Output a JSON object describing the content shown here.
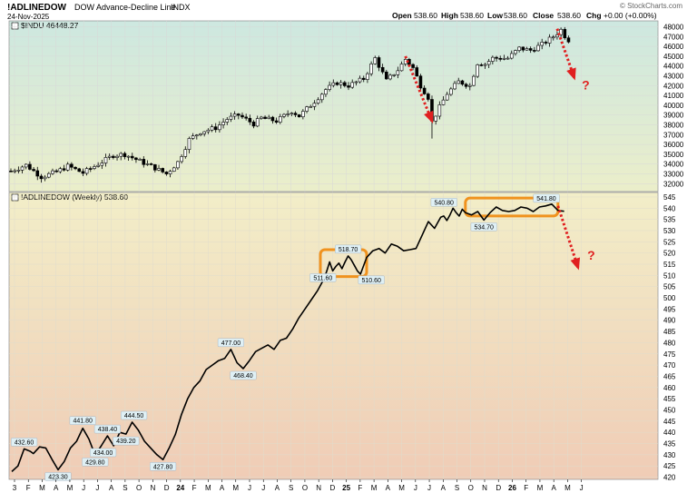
{
  "header": {
    "symbol": "!ADLINEDOW",
    "description": "DOW Advance-Decline Line",
    "exchange": "INDX",
    "date": "24-Nov-2025",
    "open_label": "Open",
    "open_value": "538.60",
    "high_label": "High",
    "high_value": "538.60",
    "low_label": "Low",
    "low_value": "538.60",
    "close_label": "Close",
    "close_value": "538.60",
    "chg_label": "Chg",
    "chg_value": "+0.00 (+0.00%)",
    "watermark": "© StockCharts.com"
  },
  "colors": {
    "candle": "#000000",
    "arrow": "#e02020",
    "box": "#f0921e",
    "line": "#000000"
  },
  "chart_data": [
    {
      "type": "candlestick",
      "label": "$INDU 46448.27",
      "yticks": [
        32000,
        33000,
        34000,
        35000,
        36000,
        37000,
        38000,
        39000,
        40000,
        41000,
        42000,
        43000,
        44000,
        45000,
        46000,
        47000,
        48000
      ],
      "ylim": [
        31200,
        48600
      ],
      "x_tick_labels": [
        "3",
        "F",
        "M",
        "A",
        "M",
        "J",
        "J",
        "A",
        "S",
        "O",
        "N",
        "D",
        "24",
        "F",
        "M",
        "A",
        "M",
        "J",
        "J",
        "A",
        "S",
        "O",
        "N",
        "D",
        "25",
        "F",
        "M",
        "A",
        "M",
        "J",
        "J",
        "A",
        "S",
        "O",
        "N",
        "D",
        "26",
        "F",
        "M",
        "A",
        "M",
        "J"
      ],
      "x_bold_ticks": [
        "24",
        "25",
        "26"
      ],
      "weekly_close_anchors": [
        [
          0,
          33300
        ],
        [
          4,
          33900
        ],
        [
          8,
          32700
        ],
        [
          12,
          33200
        ],
        [
          15,
          33800
        ],
        [
          19,
          33100
        ],
        [
          23,
          34000
        ],
        [
          27,
          34900
        ],
        [
          30,
          35000
        ],
        [
          34,
          34300
        ],
        [
          38,
          33600
        ],
        [
          41,
          33000
        ],
        [
          44,
          34200
        ],
        [
          47,
          36500
        ],
        [
          50,
          37300
        ],
        [
          54,
          37700
        ],
        [
          57,
          38600
        ],
        [
          60,
          39000
        ],
        [
          64,
          38100
        ],
        [
          66,
          38700
        ],
        [
          70,
          38400
        ],
        [
          74,
          39400
        ],
        [
          76,
          38900
        ],
        [
          79,
          40000
        ],
        [
          83,
          41600
        ],
        [
          86,
          42300
        ],
        [
          89,
          42000
        ],
        [
          93,
          42700
        ],
        [
          96,
          44800
        ],
        [
          99,
          42500
        ],
        [
          102,
          43600
        ],
        [
          104,
          44700
        ],
        [
          106,
          43800
        ],
        [
          108,
          42000
        ],
        [
          110,
          40800
        ],
        [
          111,
          38300
        ],
        [
          113,
          39800
        ],
        [
          115,
          41200
        ],
        [
          118,
          42400
        ],
        [
          121,
          42000
        ],
        [
          123,
          44300
        ],
        [
          125,
          44200
        ],
        [
          127,
          44800
        ],
        [
          131,
          44800
        ],
        [
          134,
          45800
        ],
        [
          137,
          45600
        ],
        [
          140,
          46200
        ],
        [
          143,
          47000
        ],
        [
          145,
          47700
        ],
        [
          147,
          46448
        ]
      ],
      "weeks_shown": 148
    },
    {
      "type": "line",
      "label": "!ADLINEDOW (Weekly) 538.60",
      "yticks": [
        420,
        425,
        430,
        435,
        440,
        445,
        450,
        455,
        460,
        465,
        470,
        475,
        480,
        485,
        490,
        495,
        500,
        505,
        510,
        515,
        520,
        525,
        530,
        535,
        540,
        545
      ],
      "ylim": [
        419,
        547
      ],
      "points": [
        [
          0,
          422.5
        ],
        [
          2,
          425
        ],
        [
          4,
          432.6
        ],
        [
          6,
          431.5
        ],
        [
          7,
          430.5
        ],
        [
          9,
          433.5
        ],
        [
          11,
          433
        ],
        [
          13,
          428
        ],
        [
          15,
          423.3
        ],
        [
          17,
          427
        ],
        [
          19,
          433
        ],
        [
          21,
          436
        ],
        [
          23,
          441.8
        ],
        [
          25,
          437
        ],
        [
          27,
          429.8
        ],
        [
          29,
          434
        ],
        [
          31,
          438.4
        ],
        [
          33,
          434
        ],
        [
          35,
          440
        ],
        [
          37,
          439.2
        ],
        [
          39,
          444.5
        ],
        [
          41,
          441
        ],
        [
          43,
          436
        ],
        [
          45,
          433
        ],
        [
          47,
          430
        ],
        [
          49,
          427.8
        ],
        [
          51,
          433
        ],
        [
          53,
          439
        ],
        [
          55,
          448
        ],
        [
          57,
          455
        ],
        [
          59,
          460
        ],
        [
          61,
          463
        ],
        [
          63,
          468
        ],
        [
          65,
          470
        ],
        [
          67,
          472
        ],
        [
          69,
          473
        ],
        [
          71,
          477
        ],
        [
          73,
          471
        ],
        [
          75,
          468.4
        ],
        [
          77,
          472
        ],
        [
          79,
          476
        ],
        [
          81,
          477.5
        ],
        [
          83,
          479
        ],
        [
          85,
          477
        ],
        [
          87,
          481
        ],
        [
          89,
          482
        ],
        [
          91,
          486
        ],
        [
          93,
          491
        ],
        [
          95,
          495
        ],
        [
          97,
          499
        ],
        [
          99,
          503
        ],
        [
          101,
          508
        ],
        [
          102,
          511.6
        ],
        [
          103,
          516
        ],
        [
          104,
          512
        ],
        [
          105,
          514
        ],
        [
          106,
          515.5
        ],
        [
          107,
          513
        ],
        [
          108,
          516
        ],
        [
          109,
          518.7
        ],
        [
          110,
          517
        ],
        [
          111,
          514.5
        ],
        [
          112,
          512
        ],
        [
          113,
          510.6
        ],
        [
          115,
          518
        ],
        [
          117,
          521
        ],
        [
          119,
          522
        ],
        [
          121,
          520
        ],
        [
          123,
          524
        ],
        [
          125,
          523
        ],
        [
          127,
          521
        ],
        [
          129,
          521.5
        ],
        [
          131,
          522
        ],
        [
          133,
          528
        ],
        [
          135,
          534
        ],
        [
          137,
          531
        ],
        [
          139,
          536
        ],
        [
          140,
          536.5
        ],
        [
          141,
          534.5
        ],
        [
          142,
          537
        ],
        [
          143,
          540
        ],
        [
          144,
          538
        ],
        [
          145,
          536.5
        ],
        [
          146,
          539.5
        ],
        [
          147,
          538
        ],
        [
          149,
          537
        ],
        [
          151,
          538.5
        ],
        [
          153,
          534.7
        ],
        [
          155,
          538
        ],
        [
          157,
          540.5
        ],
        [
          159,
          539
        ],
        [
          161,
          538.5
        ],
        [
          163,
          539
        ],
        [
          165,
          540.5
        ],
        [
          167,
          540
        ],
        [
          169,
          538.5
        ],
        [
          171,
          540.5
        ],
        [
          173,
          541
        ],
        [
          175,
          541.8
        ],
        [
          177,
          539
        ],
        [
          179,
          538.6
        ]
      ],
      "value_labels": [
        "432.60",
        "423.30",
        "441.80",
        "429.80",
        "434.00",
        "438.40",
        "439.20",
        "444.50",
        "427.80",
        "477.00",
        "468.40",
        "511.60",
        "518.70",
        "510.60",
        "540.80",
        "534.70",
        "541.80"
      ],
      "annotations": [
        "?",
        "?"
      ]
    }
  ]
}
